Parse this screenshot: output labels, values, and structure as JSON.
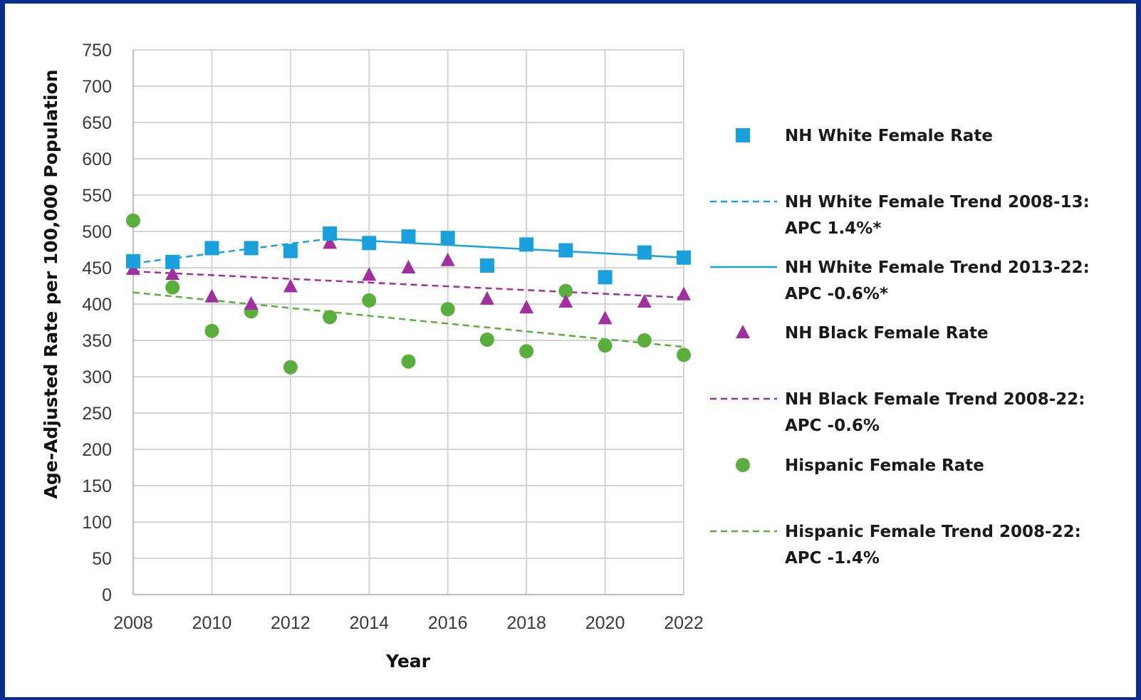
{
  "chart_data": {
    "type": "scatter",
    "xlabel": "Year",
    "ylabel": "Age-Adjusted Rate per 100,000 Population",
    "xlim": [
      2008,
      2022
    ],
    "ylim": [
      0,
      750
    ],
    "x_ticks": [
      2008,
      2010,
      2012,
      2014,
      2016,
      2018,
      2020,
      2022
    ],
    "y_ticks": [
      0,
      50,
      100,
      150,
      200,
      250,
      300,
      350,
      400,
      450,
      500,
      550,
      600,
      650,
      700,
      750
    ],
    "grid": true,
    "legend_position": "right",
    "series": [
      {
        "name": "NH White Female Rate",
        "kind": "points",
        "marker": "square",
        "color": "#1aa0dc",
        "x": [
          2008,
          2009,
          2010,
          2011,
          2012,
          2013,
          2014,
          2015,
          2016,
          2017,
          2018,
          2019,
          2020,
          2021,
          2022
        ],
        "y": [
          459,
          458,
          477,
          477,
          473,
          497,
          484,
          493,
          491,
          453,
          482,
          474,
          437,
          471,
          464
        ]
      },
      {
        "name": "NH White Female Trend 2008-13:",
        "name_line2": "APC 1.4%*",
        "kind": "trend",
        "line_style": "dashed",
        "color": "#1aa0dc",
        "x": [
          2008,
          2013
        ],
        "y": [
          456,
          490
        ]
      },
      {
        "name": "NH White Female Trend 2013-22:",
        "name_line2": "APC -0.6%*",
        "kind": "trend",
        "line_style": "solid",
        "color": "#1aa0dc",
        "x": [
          2013,
          2022
        ],
        "y": [
          490,
          464
        ]
      },
      {
        "name": "NH Black Female Rate",
        "kind": "points",
        "marker": "triangle",
        "color": "#a0309e",
        "x": [
          2008,
          2009,
          2010,
          2011,
          2012,
          2013,
          2014,
          2015,
          2016,
          2017,
          2018,
          2019,
          2020,
          2021,
          2022
        ],
        "y": [
          448,
          441,
          410,
          400,
          424,
          484,
          440,
          450,
          460,
          407,
          395,
          403,
          380,
          403,
          413
        ]
      },
      {
        "name": "NH Black Female Trend 2008-22:",
        "name_line2": "APC -0.6%",
        "kind": "trend",
        "line_style": "dashed",
        "color": "#a0309e",
        "x": [
          2008,
          2022
        ],
        "y": [
          445,
          409
        ]
      },
      {
        "name": "Hispanic Female Rate",
        "kind": "points",
        "marker": "circle",
        "color": "#5aaf3c",
        "x": [
          2008,
          2009,
          2010,
          2011,
          2012,
          2013,
          2014,
          2015,
          2016,
          2017,
          2018,
          2019,
          2020,
          2021,
          2022
        ],
        "y": [
          515,
          423,
          363,
          390,
          313,
          382,
          405,
          321,
          393,
          351,
          335,
          418,
          343,
          350,
          330
        ]
      },
      {
        "name": "Hispanic Female Trend 2008-22:",
        "name_line2": "APC -1.4%",
        "kind": "trend",
        "line_style": "dashed",
        "color": "#5aaf3c",
        "x": [
          2008,
          2022
        ],
        "y": [
          416,
          341
        ]
      }
    ]
  }
}
